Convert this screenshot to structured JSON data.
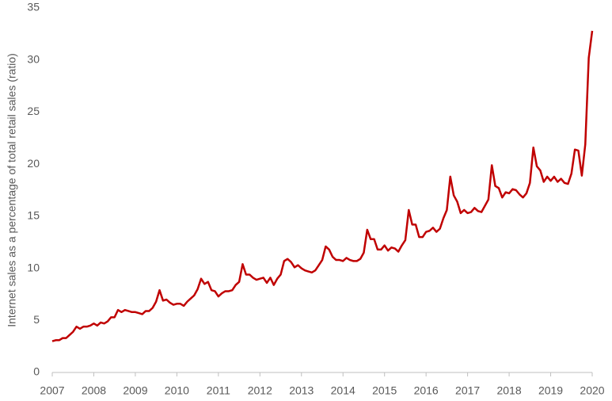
{
  "chart_data": {
    "type": "line",
    "y_label": "Internet sales as a percentage of total retail sales (ratio)",
    "categories": [
      "2007",
      null,
      null,
      null,
      null,
      null,
      null,
      null,
      null,
      null,
      null,
      null,
      "2008",
      null,
      null,
      null,
      null,
      null,
      null,
      null,
      null,
      null,
      null,
      null,
      "2009",
      null,
      null,
      null,
      null,
      null,
      null,
      null,
      null,
      null,
      null,
      null,
      "2010",
      null,
      null,
      null,
      null,
      null,
      null,
      null,
      null,
      null,
      null,
      null,
      "2011",
      null,
      null,
      null,
      null,
      null,
      null,
      null,
      null,
      null,
      null,
      null,
      "2012",
      null,
      null,
      null,
      null,
      null,
      null,
      null,
      null,
      null,
      null,
      null,
      "2013",
      null,
      null,
      null,
      null,
      null,
      null,
      null,
      null,
      null,
      null,
      null,
      "2014",
      null,
      null,
      null,
      null,
      null,
      null,
      null,
      null,
      null,
      null,
      null,
      "2015",
      null,
      null,
      null,
      null,
      null,
      null,
      null,
      null,
      null,
      null,
      null,
      "2016",
      null,
      null,
      null,
      null,
      null,
      null,
      null,
      null,
      null,
      null,
      null,
      "2017",
      null,
      null,
      null,
      null,
      null,
      null,
      null,
      null,
      null,
      null,
      null,
      "2018",
      null,
      null,
      null,
      null,
      null,
      null,
      null,
      null,
      null,
      null,
      null,
      "2019",
      null,
      null,
      null,
      null,
      null,
      null,
      null,
      null,
      null,
      null,
      null,
      "2020"
    ],
    "values": [
      3.0,
      3.1,
      3.1,
      3.3,
      3.3,
      3.6,
      3.9,
      4.4,
      4.2,
      4.4,
      4.4,
      4.5,
      4.7,
      4.5,
      4.8,
      4.7,
      4.9,
      5.3,
      5.3,
      6.0,
      5.8,
      6.0,
      5.9,
      5.8,
      5.8,
      5.7,
      5.6,
      5.9,
      5.9,
      6.2,
      6.8,
      7.9,
      6.9,
      7.0,
      6.7,
      6.5,
      6.6,
      6.6,
      6.4,
      6.8,
      7.1,
      7.4,
      8.0,
      9.0,
      8.5,
      8.7,
      7.9,
      7.8,
      7.3,
      7.6,
      7.8,
      7.8,
      7.9,
      8.4,
      8.7,
      10.4,
      9.4,
      9.4,
      9.1,
      8.9,
      9.0,
      9.1,
      8.6,
      9.1,
      8.4,
      9.0,
      9.4,
      10.7,
      10.9,
      10.6,
      10.1,
      10.3,
      10.0,
      9.8,
      9.7,
      9.6,
      9.8,
      10.3,
      10.8,
      12.1,
      11.8,
      11.1,
      10.8,
      10.8,
      10.7,
      11.0,
      10.8,
      10.7,
      10.7,
      10.9,
      11.5,
      13.7,
      12.8,
      12.8,
      11.8,
      11.8,
      12.2,
      11.7,
      12.0,
      11.9,
      11.6,
      12.2,
      12.7,
      15.6,
      14.2,
      14.2,
      13.0,
      13.0,
      13.5,
      13.6,
      13.9,
      13.5,
      13.8,
      14.8,
      15.6,
      18.8,
      17.0,
      16.4,
      15.3,
      15.6,
      15.3,
      15.4,
      15.8,
      15.5,
      15.4,
      16.0,
      16.6,
      19.9,
      17.9,
      17.7,
      16.8,
      17.3,
      17.2,
      17.6,
      17.5,
      17.1,
      16.8,
      17.2,
      18.2,
      21.6,
      19.8,
      19.4,
      18.3,
      18.8,
      18.4,
      18.8,
      18.3,
      18.6,
      18.2,
      18.1,
      19.1,
      21.4,
      21.3,
      18.9,
      21.9,
      30.2,
      32.8
    ],
    "color": "#c00000",
    "ylim": [
      0,
      35
    ],
    "yticks": [
      0,
      5,
      10,
      15,
      20,
      25,
      30,
      35
    ],
    "grid": false
  }
}
